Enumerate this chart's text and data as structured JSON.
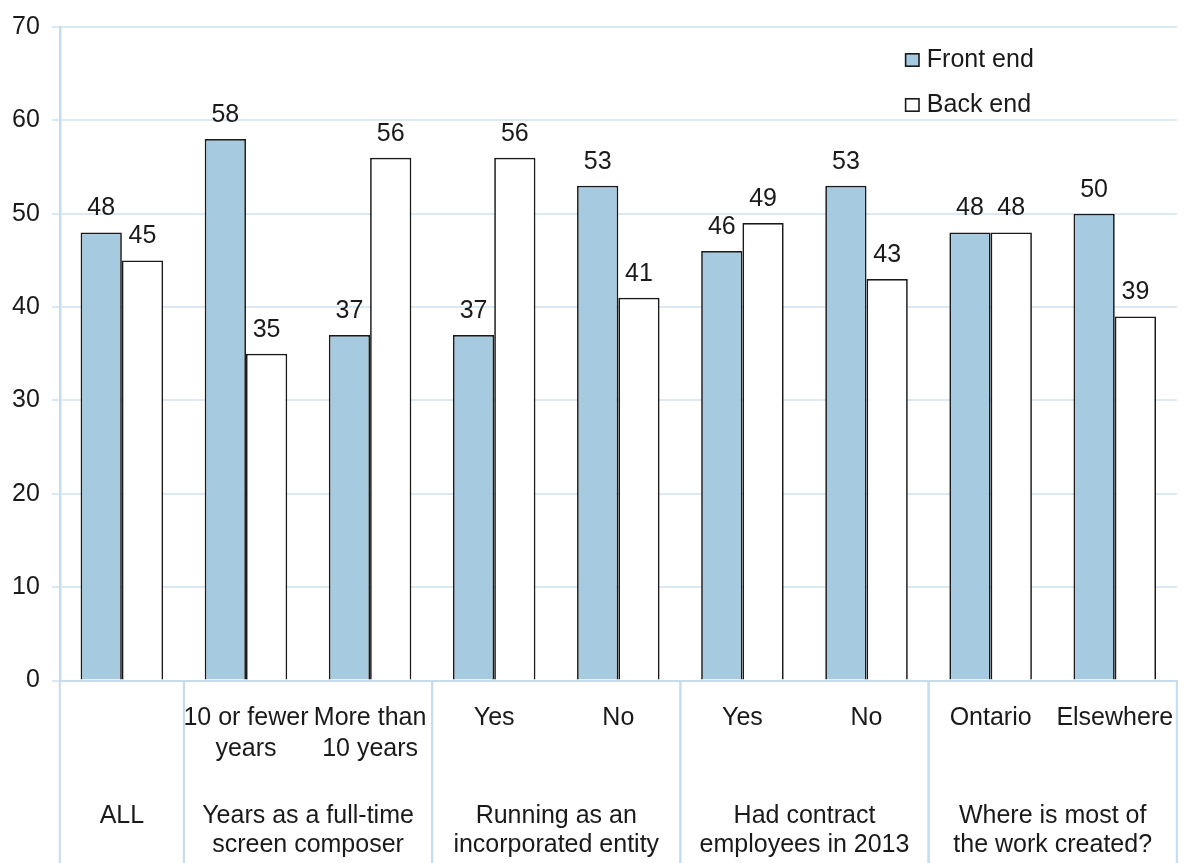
{
  "chart_data": {
    "type": "bar",
    "categories": [
      null,
      "10 or fewer years",
      "More than 10 years",
      "Yes",
      "No",
      "Yes",
      "No",
      "Ontario",
      "Elsewhere"
    ],
    "series": [
      {
        "name": "Front end",
        "color": "#a6cae0",
        "values": [
          48,
          58,
          37,
          37,
          53,
          46,
          53,
          48,
          50
        ]
      },
      {
        "name": "Back end",
        "color": "#ffffff",
        "values": [
          45,
          35,
          56,
          56,
          41,
          49,
          43,
          48,
          39
        ]
      }
    ],
    "ylim": [
      0,
      70
    ],
    "yticks": [
      0,
      10,
      20,
      30,
      40,
      50,
      60,
      70
    ],
    "grid": "y",
    "legend": "top right",
    "data_labels": true,
    "annotations": [
      "ALL",
      "Years as a full-time screen composer",
      "Running as an incorporated entity",
      "Had contract employees in 2013",
      "Where is most of the work created?"
    ]
  }
}
